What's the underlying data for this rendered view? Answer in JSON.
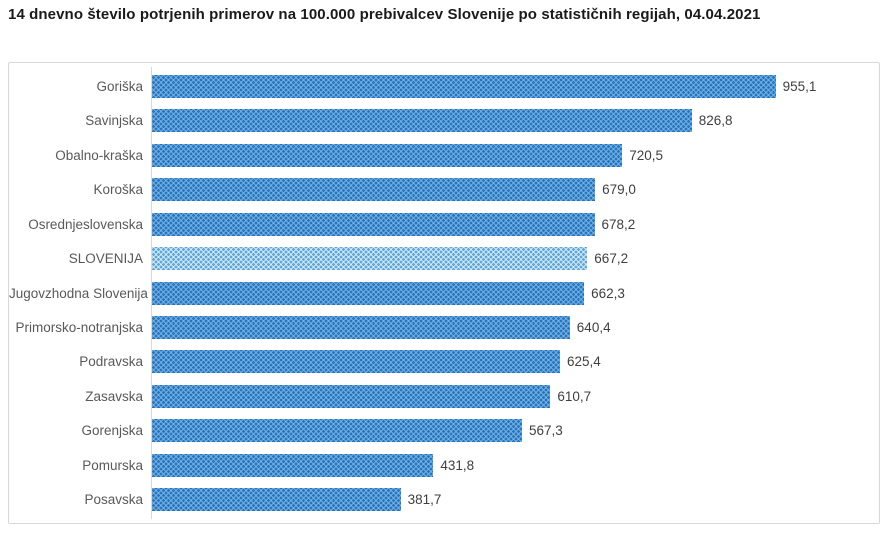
{
  "title": "14 dnevno število potrjenih primerov na 100.000 prebivalcev Slovenije po statističnih regijah, 04.04.2021",
  "chart_data": {
    "type": "bar",
    "orientation": "horizontal",
    "title": "14 dnevno število potrjenih primerov na 100.000 prebivalcev Slovenije po statističnih regijah, 04.04.2021",
    "categories": [
      "Goriška",
      "Savinjska",
      "Obalno-kraška",
      "Koroška",
      "Osrednjeslovenska",
      "SLOVENIJA",
      "Jugovzhodna Slovenija",
      "Primorsko-notranjska",
      "Podravska",
      "Zasavska",
      "Gorenjska",
      "Pomurska",
      "Posavska"
    ],
    "values": [
      955.1,
      826.8,
      720.5,
      679.0,
      678.2,
      667.2,
      662.3,
      640.4,
      625.4,
      610.7,
      567.3,
      431.8,
      381.7
    ],
    "value_labels": [
      "955,1",
      "826,8",
      "720,5",
      "679,0",
      "678,2",
      "667,2",
      "662,3",
      "640,4",
      "625,4",
      "610,7",
      "567,3",
      "431,8",
      "381,7"
    ],
    "xlabel": "",
    "ylabel": "",
    "xlim": [
      0,
      1000
    ],
    "grid": false,
    "legend": false,
    "data_labels": true,
    "highlight_index": 5,
    "highlight_category": "SLOVENIJA",
    "colors": {
      "bar_base": "#6FB0E2",
      "bar_dot": "#2A74BD",
      "highlight_base": "#CFE8F7",
      "highlight_dot": "#5FA5D8",
      "border": "#D8D8D8",
      "label_text": "#595959",
      "value_text": "#3F3F3F",
      "title_text": "#1A1A1A"
    }
  }
}
